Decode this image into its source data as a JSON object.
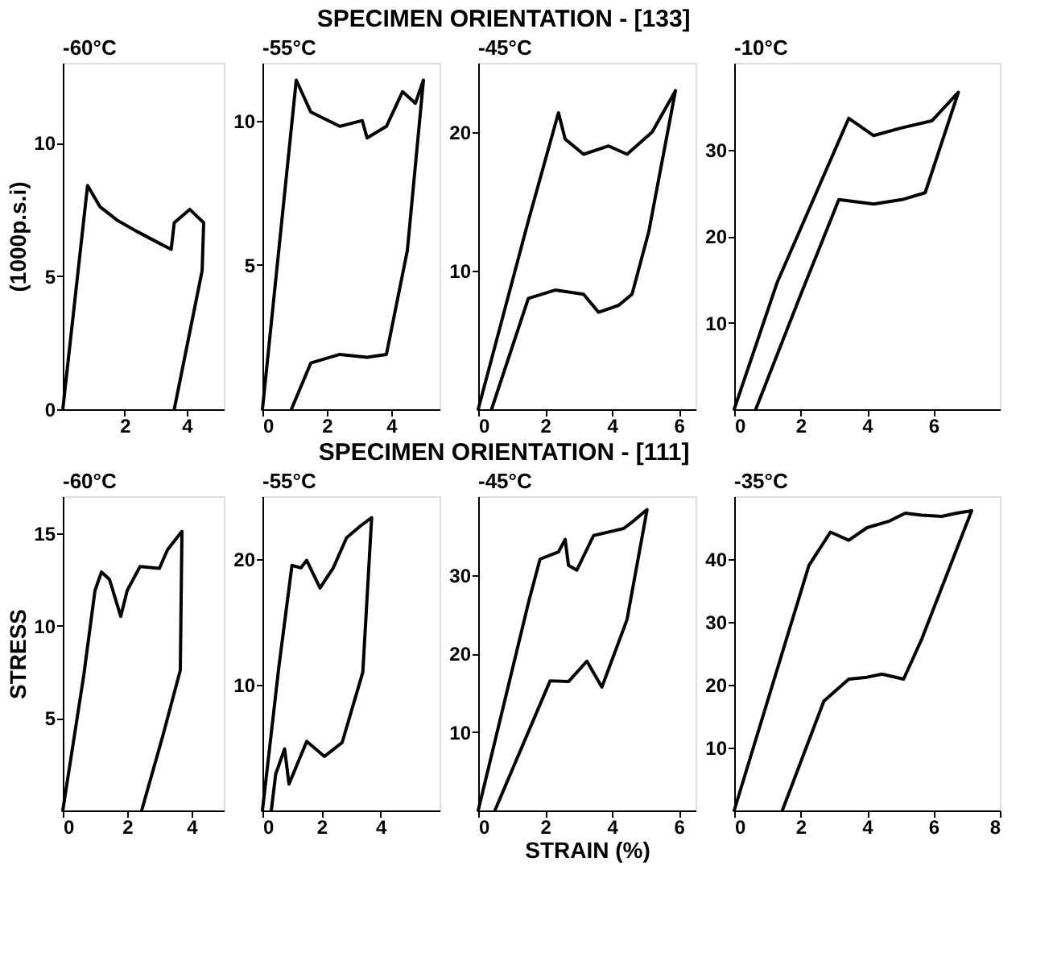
{
  "chart_data": [
    {
      "type": "line",
      "title": "-60°C",
      "ylabel": "(1000p.s.i)",
      "annotations": [
        "SPECIMEN ORIENTATION - [133]"
      ],
      "xlim": [
        0,
        5.2
      ],
      "ylim": [
        0,
        13
      ],
      "xticks": [
        2,
        4
      ],
      "yticks": [
        0,
        5,
        10
      ],
      "series": [
        {
          "color": "#000000",
          "x": [
            0,
            0.8,
            1.2,
            1.75,
            2.35,
            3.0,
            3.5,
            3.6,
            4.1,
            4.55,
            4.5,
            3.6
          ],
          "values": [
            0,
            8.4,
            7.6,
            7.1,
            6.7,
            6.3,
            6.0,
            7.0,
            7.5,
            7.0,
            5.2,
            0
          ]
        }
      ]
    },
    {
      "type": "line",
      "title": "-55°C",
      "xlim": [
        0,
        5.5
      ],
      "ylim": [
        0,
        12
      ],
      "xticks": [
        0,
        2,
        4
      ],
      "yticks": [
        5,
        10
      ],
      "series": [
        {
          "color": "#000000",
          "x": [
            0,
            1.05,
            1.5,
            2.4,
            3.1,
            3.25,
            3.85,
            4.35,
            4.75,
            5.0,
            4.5,
            3.85,
            3.25,
            2.4,
            1.5,
            0.9
          ],
          "values": [
            0,
            11.4,
            10.3,
            9.8,
            10,
            9.4,
            9.8,
            11,
            10.6,
            11.4,
            5.5,
            1.9,
            1.8,
            1.9,
            1.6,
            0
          ]
        }
      ]
    },
    {
      "type": "line",
      "title": "-45°C",
      "xlim": [
        0,
        6.5
      ],
      "ylim": [
        0,
        25
      ],
      "xticks": [
        0,
        2,
        4,
        6
      ],
      "yticks": [
        10,
        20
      ],
      "series": [
        {
          "color": "#000000",
          "x": [
            0,
            1.5,
            2.4,
            2.6,
            3.15,
            3.9,
            4.45,
            5.2,
            5.9,
            5.1,
            4.6,
            4.2,
            3.6,
            3.15,
            2.3,
            1.5,
            0.4
          ],
          "values": [
            0,
            13.6,
            21.4,
            19.5,
            18.4,
            19,
            18.4,
            20,
            23,
            12.8,
            8.3,
            7.5,
            7,
            8.3,
            8.6,
            8.0,
            0
          ]
        }
      ]
    },
    {
      "type": "line",
      "title": "-10°C",
      "xlim": [
        0,
        8
      ],
      "ylim": [
        0,
        40
      ],
      "xticks": [
        0,
        2,
        4,
        6
      ],
      "yticks": [
        10,
        20,
        30
      ],
      "series": [
        {
          "color": "#000000",
          "x": [
            0,
            1.3,
            3.45,
            4.2,
            5.05,
            5.95,
            6.75,
            5.75,
            5.05,
            4.2,
            3.15,
            2.0,
            0.65
          ],
          "values": [
            0,
            14.7,
            33.6,
            31.6,
            32.5,
            33.3,
            36.6,
            25,
            24.2,
            23.7,
            24.2,
            13.2,
            0
          ]
        }
      ]
    },
    {
      "type": "line",
      "title": "-60°C",
      "ylabel": "STRESS",
      "annotations": [
        "SPECIMEN ORIENTATION - [111]"
      ],
      "xlim": [
        0,
        5
      ],
      "ylim": [
        0,
        17
      ],
      "xticks": [
        0,
        2,
        4
      ],
      "yticks": [
        5,
        10,
        15
      ],
      "series": [
        {
          "color": "#000000",
          "x": [
            0,
            0.65,
            1.0,
            1.2,
            1.45,
            1.8,
            2.0,
            2.4,
            3.0,
            3.25,
            3.7,
            3.65,
            3.1,
            2.45
          ],
          "values": [
            0,
            7.3,
            11.9,
            12.9,
            12.5,
            10.5,
            11.9,
            13.2,
            13.1,
            14.1,
            15.1,
            7.6,
            4.0,
            0
          ]
        }
      ]
    },
    {
      "type": "line",
      "title": "-55°C",
      "xlim": [
        0,
        6
      ],
      "ylim": [
        0,
        25
      ],
      "xticks": [
        0,
        2,
        4
      ],
      "yticks": [
        10,
        20
      ],
      "series": [
        {
          "color": "#000000",
          "x": [
            0,
            0.55,
            1.0,
            1.3,
            1.5,
            1.95,
            2.4,
            2.85,
            3.3,
            3.7,
            3.4,
            2.7,
            2.1,
            1.5,
            0.9,
            0.75,
            0.45,
            0.3
          ],
          "values": [
            0,
            11.3,
            19.5,
            19.3,
            19.9,
            17.7,
            19.3,
            21.7,
            22.6,
            23.3,
            11,
            5.4,
            4.3,
            5.5,
            2.1,
            4.9,
            2.9,
            0
          ]
        }
      ]
    },
    {
      "type": "line",
      "title": "-45°C",
      "xlabel": "STRAIN (%)",
      "xlim": [
        0,
        6.5
      ],
      "ylim": [
        0,
        40
      ],
      "xticks": [
        0,
        2,
        4,
        6
      ],
      "yticks": [
        10,
        20,
        30
      ],
      "series": [
        {
          "color": "#000000",
          "x": [
            0,
            1.5,
            1.85,
            2.4,
            2.6,
            2.7,
            2.95,
            3.45,
            4.35,
            4.6,
            5.05,
            4.45,
            3.7,
            3.25,
            2.7,
            2.15,
            0.5
          ],
          "values": [
            0,
            26.4,
            32,
            32.9,
            34.5,
            31.2,
            30.6,
            35,
            35.9,
            36.7,
            38.3,
            24.3,
            15.7,
            19,
            16.4,
            16.5,
            0
          ]
        }
      ]
    },
    {
      "type": "line",
      "title": "-35°C",
      "xlim": [
        0,
        8
      ],
      "ylim": [
        0,
        50
      ],
      "xticks": [
        0,
        2,
        4,
        6,
        8
      ],
      "yticks": [
        10,
        20,
        30,
        40
      ],
      "series": [
        {
          "color": "#000000",
          "x": [
            0,
            1.5,
            2.25,
            2.9,
            3.45,
            4.0,
            4.65,
            5.15,
            5.65,
            6.25,
            6.7,
            7.15,
            5.65,
            5.1,
            4.45,
            4.0,
            3.45,
            2.7,
            1.45
          ],
          "values": [
            0,
            26,
            39,
            44.3,
            43,
            45,
            46,
            47.3,
            47,
            46.8,
            47.3,
            47.7,
            27.3,
            20.9,
            21.7,
            21.2,
            20.9,
            17.4,
            0
          ]
        }
      ]
    }
  ]
}
